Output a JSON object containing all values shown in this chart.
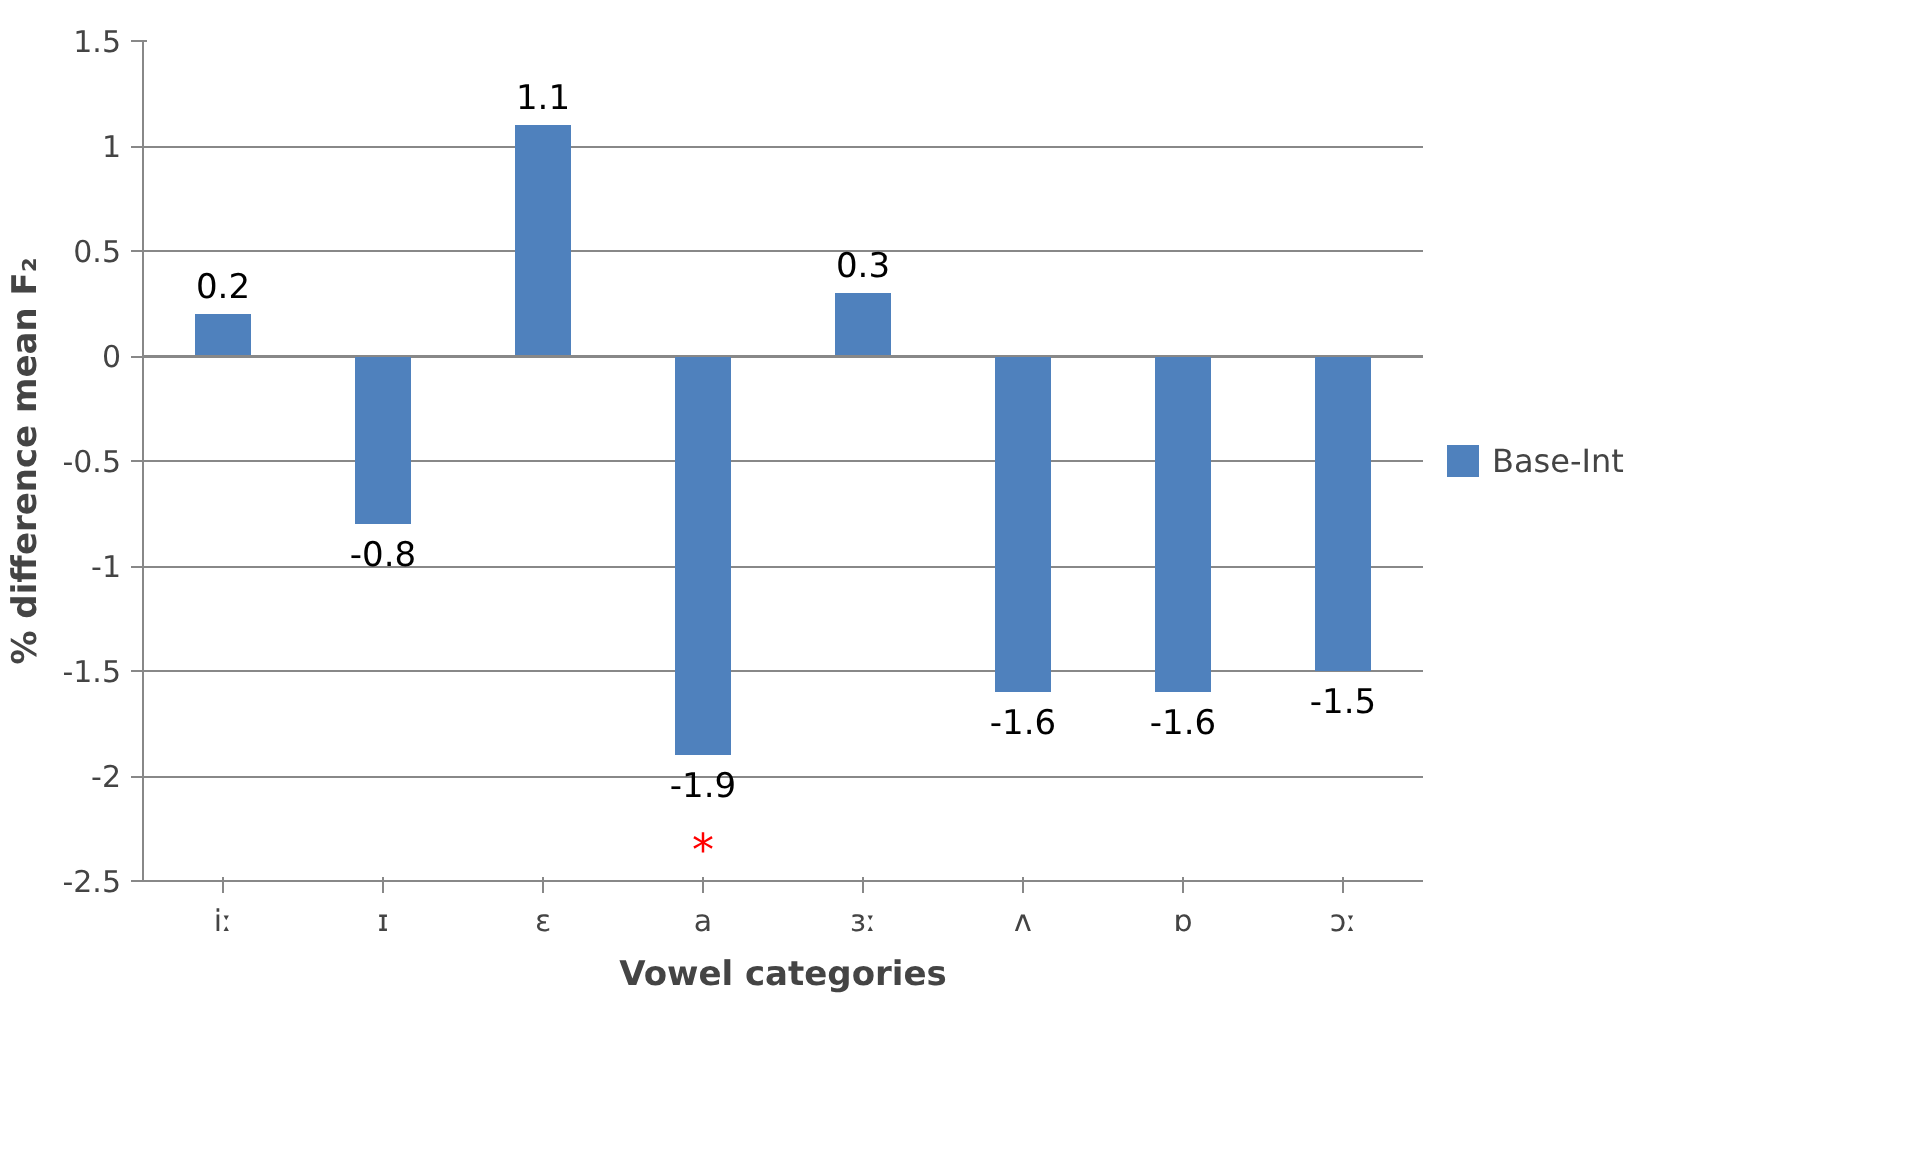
{
  "chart_data": {
    "type": "bar",
    "xlabel": "Vowel categories",
    "ylabel": "% difference mean F₂",
    "categories": [
      "iː",
      "ɪ",
      "ɛ",
      "a",
      "ɜː",
      "ʌ",
      "ɒ",
      "ɔː"
    ],
    "series": [
      {
        "name": "Base-Int",
        "color": "#4f81bd",
        "values": [
          0.2,
          -0.8,
          1.1,
          -1.9,
          0.3,
          -1.6,
          -1.6,
          -1.5
        ]
      }
    ],
    "ylim": [
      -2.5,
      1.5
    ],
    "yticks": [
      -2.5,
      -2,
      -1.5,
      -1,
      -0.5,
      0,
      0.5,
      1,
      1.5
    ],
    "grid": "y",
    "legend": "right",
    "data_labels": true,
    "annotations": [
      "*"
    ]
  }
}
